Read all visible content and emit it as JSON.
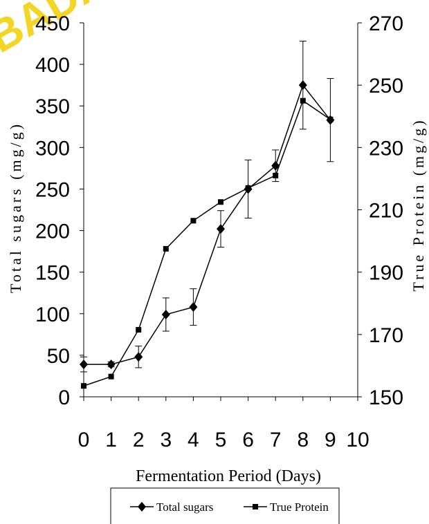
{
  "watermark": "BADA",
  "colors": {
    "line": "#000000",
    "watermark": "#f2d000",
    "background": "#ffffff"
  },
  "chart_data": {
    "type": "line",
    "xlabel": "Fermentation Period (Days)",
    "ylabel_left": "Total sugars (mg/g)",
    "ylabel_right": "True Protein (mg/g)",
    "x_ticks": [
      "0",
      "1",
      "2",
      "3",
      "4",
      "5",
      "6",
      "7",
      "8",
      "9",
      "10"
    ],
    "y_left_ticks": [
      "0",
      "50",
      "100",
      "150",
      "200",
      "250",
      "300",
      "350",
      "400",
      "450"
    ],
    "y_right_ticks": [
      "150",
      "170",
      "190",
      "210",
      "230",
      "250",
      "270"
    ],
    "xlim": [
      0,
      10
    ],
    "ylim_left": [
      0,
      450
    ],
    "ylim_right": [
      150,
      270
    ],
    "legend_position": "bottom",
    "grid": false,
    "series": [
      {
        "name": "Total sugars",
        "axis": "left",
        "marker": "diamond",
        "x": [
          0,
          1,
          2,
          3,
          4,
          5,
          6,
          7,
          8,
          9
        ],
        "y": [
          39,
          39,
          48,
          99,
          108,
          202,
          250,
          278,
          375,
          333
        ],
        "err": [
          9,
          3,
          13,
          20,
          22,
          22,
          35,
          19,
          53,
          50
        ]
      },
      {
        "name": "True Protein",
        "axis": "right",
        "marker": "square",
        "x": [
          0,
          1,
          2,
          3,
          4,
          5,
          6,
          7,
          8,
          9
        ],
        "y": [
          153.5,
          156.5,
          171.5,
          197.5,
          206.5,
          212.5,
          217,
          221,
          245,
          239
        ]
      }
    ]
  }
}
